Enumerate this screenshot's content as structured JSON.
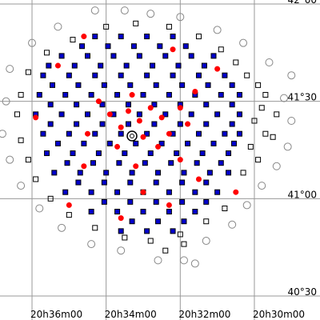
{
  "chart_data": {
    "type": "scatter",
    "xlim": [
      36.864,
      28.229
    ],
    "ylim": [
      22.6,
      121.23
    ],
    "xticks": [
      {
        "value": 36,
        "label": "20h36m00"
      },
      {
        "value": 34,
        "label": "20h34m00"
      },
      {
        "value": 32,
        "label": "20h32m00"
      },
      {
        "value": 30,
        "label": "20h30m00"
      }
    ],
    "yticks": [
      {
        "value": 30,
        "label": "40°30"
      },
      {
        "value": 60,
        "label": "41°00"
      },
      {
        "value": 90,
        "label": "41°30"
      },
      {
        "value": 120,
        "label": "42°00"
      }
    ],
    "grid": true,
    "series": [
      {
        "color": "#888888",
        "marker": "circle",
        "filled": false,
        "x": [
          34.3,
          33.5,
          35.3,
          36.0,
          36.6,
          36.7,
          36.8,
          36.6,
          36.3,
          35.8,
          35.2,
          34.4,
          33.6,
          32.6,
          31.9,
          31.3,
          30.6,
          30.2,
          29.8,
          29.4,
          29.1,
          29.0,
          29.2,
          29.0,
          29.6,
          30.3,
          31.0,
          32.0,
          32.8,
          31.6
        ],
        "y": [
          118,
          118,
          113,
          108,
          100,
          90,
          80,
          72,
          64,
          57,
          51,
          46,
          44,
          41,
          41,
          47,
          52,
          58,
          64,
          70,
          76,
          84,
          91,
          98,
          102,
          108,
          112,
          116,
          117,
          40
        ]
      },
      {
        "color": "#000000",
        "marker": "square",
        "filled": false,
        "x": [
          30.2,
          29.9,
          29.7,
          29.8,
          30.0,
          29.7,
          30.1,
          29.9,
          30.3,
          30.5,
          30.9,
          31.5,
          32.3,
          33.2,
          34.0,
          34.9,
          35.6,
          36.1,
          36.3,
          36.4,
          36.3,
          36.1,
          35.9,
          35.5,
          35.0,
          34.3,
          33.5,
          32.8,
          32.0,
          31.3,
          30.8,
          31.9,
          32.4,
          29.4,
          29.5
        ],
        "y": [
          98,
          95,
          92,
          88,
          84,
          80,
          76,
          72,
          68,
          102,
          106,
          110,
          113,
          114,
          113,
          109,
          105,
          99,
          92,
          86,
          78,
          72,
          66,
          60,
          55,
          51,
          48,
          47,
          49,
          53,
          57,
          46,
          44,
          86,
          79
        ]
      },
      {
        "color": "#0000cc",
        "marker": "square",
        "filled": true,
        "x": [
          34.3,
          33.6,
          32.9,
          32.2,
          35.2,
          34.5,
          33.8,
          33.1,
          32.4,
          31.7,
          31.1,
          35.7,
          35.0,
          34.3,
          33.6,
          32.9,
          32.2,
          31.5,
          30.8,
          35.8,
          35.1,
          34.4,
          33.7,
          33.0,
          32.3,
          31.6,
          30.9,
          30.4,
          35.9,
          35.2,
          34.5,
          33.8,
          33.1,
          32.4,
          31.7,
          31.0,
          30.4,
          35.7,
          35.0,
          34.3,
          33.6,
          32.9,
          32.2,
          31.5,
          30.8,
          30.4,
          35.6,
          34.9,
          34.2,
          33.5,
          32.8,
          32.1,
          31.4,
          30.7,
          35.4,
          34.7,
          34.0,
          33.3,
          32.6,
          31.9,
          31.2,
          30.7,
          35.1,
          34.4,
          33.7,
          33.0,
          32.3,
          31.6,
          31.0,
          34.4,
          33.7,
          33.0,
          32.3,
          31.6,
          33.6,
          32.9,
          32.2,
          34.65,
          33.95,
          33.25,
          32.55,
          31.85,
          35.55,
          34.85,
          34.15,
          33.45,
          32.75,
          32.05,
          31.35,
          35.45,
          34.75,
          34.05,
          33.35,
          32.65,
          31.95,
          31.25,
          30.6,
          35.5,
          34.8,
          34.1,
          33.4,
          32.7,
          32.0,
          31.3,
          30.6,
          35.5,
          34.8,
          34.1,
          33.4,
          32.7,
          32.0,
          31.3,
          30.6,
          35.3,
          34.6,
          33.9,
          33.2,
          32.5,
          31.8,
          31.1,
          30.55,
          35.05,
          34.35,
          33.65,
          32.95,
          32.25,
          31.55,
          30.9,
          34.75,
          34.05,
          33.35,
          32.65,
          31.95,
          31.3,
          34.05,
          33.35,
          32.65,
          31.95,
          31.3,
          33.3,
          32.6,
          31.9
        ],
        "y": [
          110,
          110,
          110,
          110,
          104,
          104,
          104,
          104,
          104,
          104,
          104,
          98,
          98,
          98,
          98,
          98,
          98,
          98,
          98,
          92,
          92,
          92,
          92,
          92,
          92,
          92,
          92,
          92,
          86,
          86,
          86,
          86,
          86,
          86,
          86,
          86,
          86,
          80,
          80,
          80,
          80,
          80,
          80,
          80,
          80,
          80,
          74,
          74,
          74,
          74,
          74,
          74,
          74,
          74,
          68,
          68,
          68,
          68,
          68,
          68,
          68,
          68,
          62,
          62,
          62,
          62,
          62,
          62,
          62,
          56,
          56,
          56,
          56,
          56,
          50,
          50,
          50,
          107,
          107,
          107,
          107,
          107,
          101,
          101,
          101,
          101,
          101,
          101,
          101,
          95,
          95,
          95,
          95,
          95,
          95,
          95,
          95,
          89,
          89,
          89,
          89,
          89,
          89,
          89,
          89,
          83,
          83,
          83,
          83,
          83,
          83,
          83,
          83,
          77,
          77,
          77,
          77,
          77,
          77,
          77,
          77,
          71,
          71,
          71,
          71,
          71,
          71,
          71,
          65,
          65,
          65,
          65,
          65,
          65,
          59,
          59,
          59,
          59,
          59,
          53,
          53,
          53
        ]
      },
      {
        "color": "#ff0000",
        "marker": "circle",
        "filled": true,
        "x": [
          33.4,
          33.1,
          32.8,
          33.6,
          32.5,
          33.9,
          32.3,
          33.0,
          33.7,
          32.6,
          34.2,
          32.0,
          33.3,
          34.5,
          31.8,
          33.2,
          32.0,
          34.6,
          31.5,
          33.0,
          32.3,
          35.3,
          35.9,
          32.2,
          34.6,
          31.0,
          30.5,
          33.6,
          35.0,
          31.6
        ],
        "y": [
          87,
          84,
          88,
          82,
          85,
          86,
          80,
          79,
          76,
          76,
          90,
          88,
          92,
          80,
          83,
          70,
          72,
          70,
          66,
          62,
          58,
          101,
          85,
          106,
          110,
          100,
          62,
          54,
          58,
          93
        ]
      }
    ]
  }
}
